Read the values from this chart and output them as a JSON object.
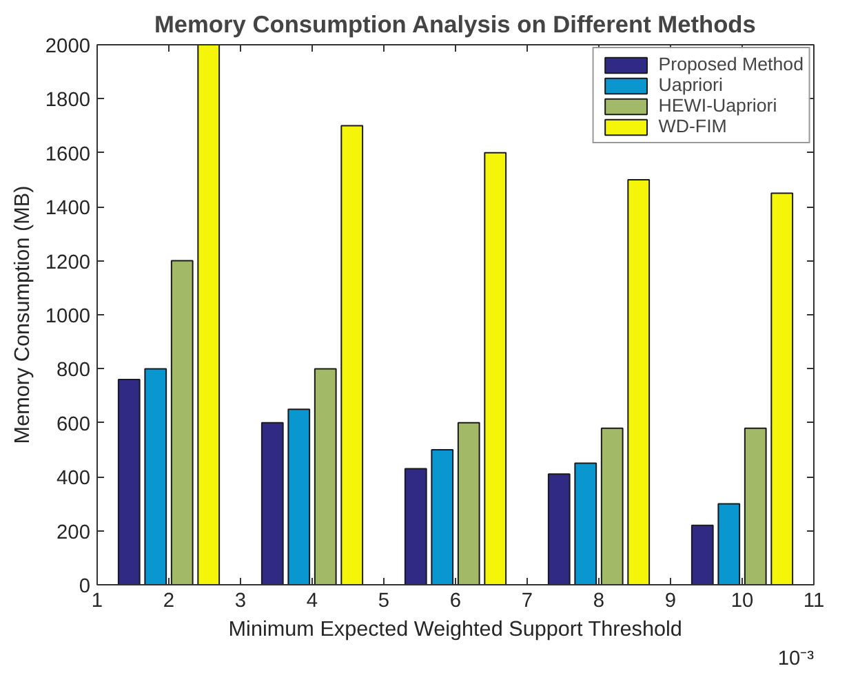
{
  "chart_data": {
    "type": "bar",
    "title": "Memory Consumption Analysis on Different Methods",
    "xlabel": "Minimum Expected Weighted Support Threshold",
    "ylabel": "Memory Consumption (MB)",
    "annotations": [
      "10⁻³"
    ],
    "x": [
      2,
      4,
      6,
      8,
      10
    ],
    "series": [
      {
        "name": "Proposed Method",
        "color": "#302a84",
        "values": [
          760,
          600,
          430,
          410,
          220
        ]
      },
      {
        "name": "Uapriori",
        "color": "#0a96ce",
        "values": [
          800,
          650,
          500,
          450,
          300
        ]
      },
      {
        "name": "HEWI-Uapriori",
        "color": "#a2b967",
        "values": [
          1200,
          800,
          600,
          580,
          580
        ]
      },
      {
        "name": "WD-FIM",
        "color": "#f5f50a",
        "values": [
          2000,
          1700,
          1600,
          1500,
          1450
        ]
      }
    ],
    "xlim": [
      1,
      11
    ],
    "xticks": [
      1,
      2,
      3,
      4,
      5,
      6,
      7,
      8,
      9,
      10,
      11
    ],
    "ylim": [
      0,
      2000
    ],
    "yticks": [
      0,
      200,
      400,
      600,
      800,
      1000,
      1200,
      1400,
      1600,
      1800,
      2000
    ],
    "legend": "top right"
  }
}
